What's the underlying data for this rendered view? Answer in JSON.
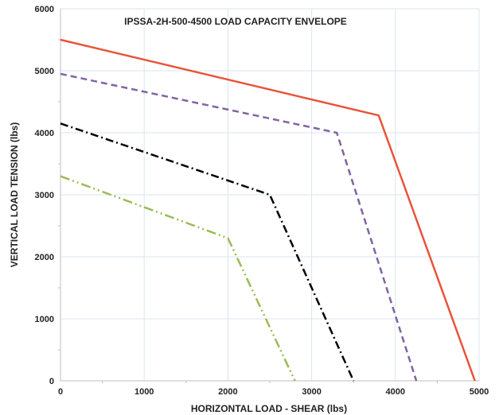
{
  "chart_data": {
    "type": "line",
    "title": "IPSSA-2H-500-4500 LOAD CAPACITY ENVELOPE",
    "xlabel": "HORIZONTAL LOAD - SHEAR (lbs)",
    "ylabel": "VERTICAL LOAD TENSION (lbs)",
    "xlim": [
      0,
      5000
    ],
    "ylim": [
      0,
      6000
    ],
    "x_ticks": [
      0,
      1000,
      2000,
      3000,
      4000,
      5000
    ],
    "y_ticks": [
      0,
      1000,
      2000,
      3000,
      4000,
      5000,
      6000
    ],
    "x_tick_labels": [
      "0",
      "1000",
      "2000",
      "3000",
      "4000",
      "5000"
    ],
    "y_tick_labels": [
      "0",
      "1000",
      "2000",
      "3000",
      "4000",
      "5000",
      "6000"
    ],
    "grid": true,
    "legend": "none",
    "series": [
      {
        "color": "#e8543a",
        "style": "solid",
        "x": [
          0,
          3800,
          4950
        ],
        "y": [
          5500,
          4280,
          0
        ]
      },
      {
        "color": "#8064a2",
        "style": "dashed",
        "x": [
          0,
          3300,
          4250
        ],
        "y": [
          4950,
          4000,
          0
        ]
      },
      {
        "color": "#000000",
        "style": "dash-dot",
        "x": [
          0,
          2500,
          3500
        ],
        "y": [
          4150,
          3000,
          0
        ]
      },
      {
        "color": "#9bbb59",
        "style": "dash-dot-dot",
        "x": [
          0,
          2000,
          2800
        ],
        "y": [
          3300,
          2300,
          0
        ]
      }
    ]
  }
}
